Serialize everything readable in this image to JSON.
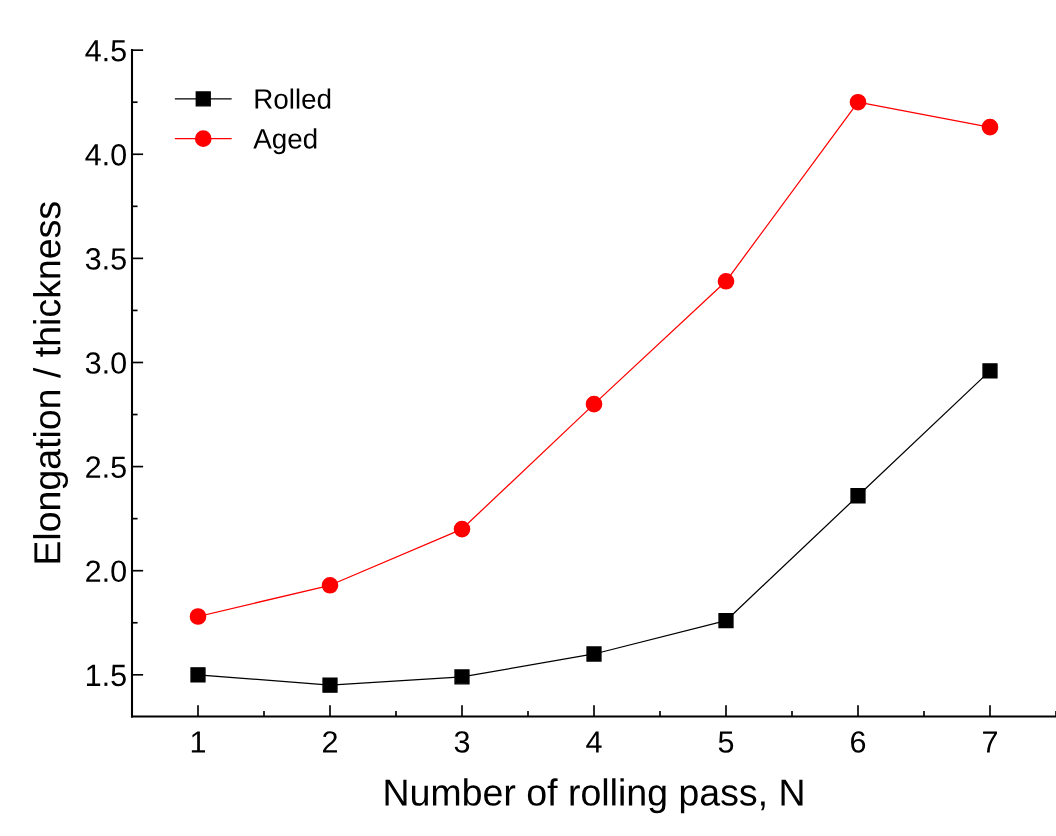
{
  "chart_data": {
    "type": "line",
    "xlabel": "Number of rolling pass, N",
    "ylabel": "Elongation / thickness",
    "x": [
      1,
      2,
      3,
      4,
      5,
      6,
      7
    ],
    "series": [
      {
        "name": "Rolled",
        "color": "#000000",
        "marker": "square",
        "values": [
          1.5,
          1.45,
          1.49,
          1.6,
          1.76,
          2.36,
          2.96
        ]
      },
      {
        "name": "Aged",
        "color": "#ff0000",
        "marker": "circle",
        "values": [
          1.78,
          1.93,
          2.2,
          2.8,
          3.39,
          4.25,
          4.13
        ]
      }
    ],
    "xlim": [
      0.5,
      7.5
    ],
    "xticks": [
      1,
      2,
      3,
      4,
      5,
      6,
      7
    ],
    "ylim": [
      1.3,
      4.5
    ],
    "yticks": [
      1.5,
      {
        "value": 2,
        "label": "2.0"
      },
      2.5,
      {
        "value": 3,
        "label": "3.0"
      },
      3.5,
      {
        "value": 4,
        "label": "4.0"
      },
      4.5
    ],
    "grid": false,
    "legend": "top left",
    "line_style": "solid"
  }
}
